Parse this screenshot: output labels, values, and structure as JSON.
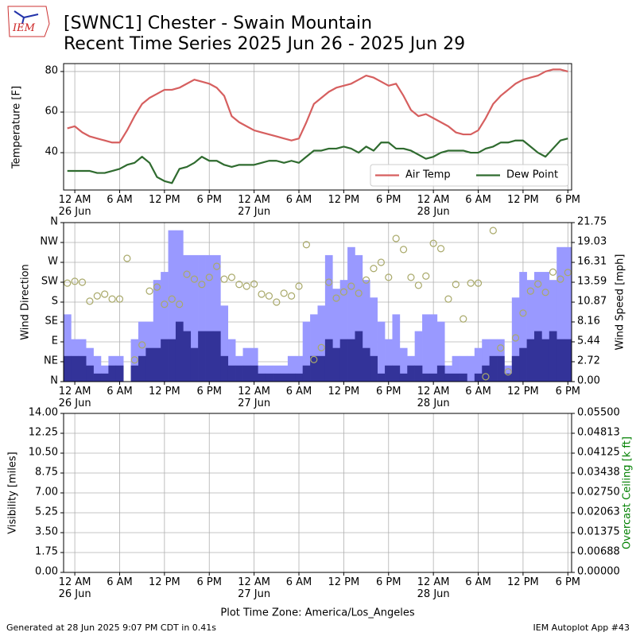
{
  "logo": "IEM",
  "footer": {
    "left": "Generated at 28 Jun 2025 9:07 PM CDT in 0.41s",
    "right": "IEM Autoplot App #43"
  },
  "chart_data": [
    {
      "type": "line",
      "title": "[SWNC1] Chester - Swain Mountain",
      "subtitle": "Recent Time Series 2025 Jun 26 - 2025 Jun 29",
      "ylabel": "Temperature [F]",
      "x": [
        "2025-06-25 23:00",
        "2025-06-26 00:00",
        "2025-06-26 01:00",
        "2025-06-26 02:00",
        "2025-06-26 03:00",
        "2025-06-26 04:00",
        "2025-06-26 05:00",
        "2025-06-26 06:00",
        "2025-06-26 07:00",
        "2025-06-26 08:00",
        "2025-06-26 09:00",
        "2025-06-26 10:00",
        "2025-06-26 11:00",
        "2025-06-26 12:00",
        "2025-06-26 13:00",
        "2025-06-26 14:00",
        "2025-06-26 15:00",
        "2025-06-26 16:00",
        "2025-06-26 17:00",
        "2025-06-26 18:00",
        "2025-06-26 19:00",
        "2025-06-26 20:00",
        "2025-06-26 21:00",
        "2025-06-26 22:00",
        "2025-06-26 23:00",
        "2025-06-27 00:00",
        "2025-06-27 01:00",
        "2025-06-27 02:00",
        "2025-06-27 03:00",
        "2025-06-27 04:00",
        "2025-06-27 05:00",
        "2025-06-27 06:00",
        "2025-06-27 07:00",
        "2025-06-27 08:00",
        "2025-06-27 09:00",
        "2025-06-27 10:00",
        "2025-06-27 11:00",
        "2025-06-27 12:00",
        "2025-06-27 13:00",
        "2025-06-27 14:00",
        "2025-06-27 15:00",
        "2025-06-27 16:00",
        "2025-06-27 17:00",
        "2025-06-27 18:00",
        "2025-06-27 19:00",
        "2025-06-27 20:00",
        "2025-06-27 21:00",
        "2025-06-27 22:00",
        "2025-06-27 23:00",
        "2025-06-28 00:00",
        "2025-06-28 01:00",
        "2025-06-28 02:00",
        "2025-06-28 03:00",
        "2025-06-28 04:00",
        "2025-06-28 05:00",
        "2025-06-28 06:00",
        "2025-06-28 07:00",
        "2025-06-28 08:00",
        "2025-06-28 09:00",
        "2025-06-28 10:00",
        "2025-06-28 11:00",
        "2025-06-28 12:00",
        "2025-06-28 13:00",
        "2025-06-28 14:00",
        "2025-06-28 15:00",
        "2025-06-28 16:00",
        "2025-06-28 17:00",
        "2025-06-28 18:00"
      ],
      "series": [
        {
          "name": "Air Temp",
          "color": "#d65f5f",
          "values": [
            52,
            53,
            50,
            48,
            47,
            46,
            45,
            45,
            51,
            58,
            64,
            67,
            69,
            71,
            71,
            72,
            74,
            76,
            75,
            74,
            72,
            68,
            58,
            55,
            53,
            51,
            50,
            49,
            48,
            47,
            46,
            47,
            55,
            64,
            67,
            70,
            72,
            73,
            74,
            76,
            78,
            77,
            75,
            73,
            74,
            68,
            61,
            58,
            59,
            57,
            55,
            53,
            50,
            49,
            49,
            51,
            57,
            64,
            68,
            71,
            74,
            76,
            77,
            78,
            80,
            81,
            81,
            80
          ]
        },
        {
          "name": "Dew Point",
          "color": "#2f6b2f",
          "values": [
            31,
            31,
            31,
            31,
            30,
            30,
            31,
            32,
            34,
            35,
            38,
            35,
            28,
            26,
            25,
            32,
            33,
            35,
            38,
            36,
            36,
            34,
            33,
            34,
            34,
            34,
            35,
            36,
            36,
            35,
            36,
            35,
            38,
            41,
            41,
            42,
            42,
            43,
            42,
            40,
            43,
            41,
            45,
            45,
            42,
            42,
            41,
            39,
            37,
            38,
            40,
            41,
            41,
            41,
            40,
            40,
            42,
            43,
            45,
            45,
            46,
            46,
            43,
            40,
            38,
            42,
            46,
            47
          ]
        }
      ],
      "xlim": [
        "2025-06-25 22:30",
        "2025-06-28 18:30"
      ],
      "xticks": [
        {
          "value": "2025-06-26 00:00",
          "label": "12 AM\n26 Jun"
        },
        {
          "value": "2025-06-26 06:00",
          "label": "6 AM"
        },
        {
          "value": "2025-06-26 12:00",
          "label": "12 PM"
        },
        {
          "value": "2025-06-26 18:00",
          "label": "6 PM"
        },
        {
          "value": "2025-06-27 00:00",
          "label": "12 AM\n27 Jun"
        },
        {
          "value": "2025-06-27 06:00",
          "label": "6 AM"
        },
        {
          "value": "2025-06-27 12:00",
          "label": "12 PM"
        },
        {
          "value": "2025-06-27 18:00",
          "label": "6 PM"
        },
        {
          "value": "2025-06-28 00:00",
          "label": "12 AM\n28 Jun"
        },
        {
          "value": "2025-06-28 06:00",
          "label": "6 AM"
        },
        {
          "value": "2025-06-28 12:00",
          "label": "12 PM"
        },
        {
          "value": "2025-06-28 18:00",
          "label": "6 PM"
        }
      ],
      "ylim": [
        21.6,
        83.9
      ],
      "yticks": [
        40,
        60,
        80
      ],
      "grid": true,
      "legend": "lower right"
    },
    {
      "type": "bar",
      "ylabel": "Wind Direction",
      "y2label": "Wind Speed [mph]",
      "x": [
        "2025-06-25 23:00",
        "2025-06-26 00:00",
        "2025-06-26 01:00",
        "2025-06-26 02:00",
        "2025-06-26 03:00",
        "2025-06-26 04:00",
        "2025-06-26 05:00",
        "2025-06-26 06:00",
        "2025-06-26 07:00",
        "2025-06-26 08:00",
        "2025-06-26 09:00",
        "2025-06-26 10:00",
        "2025-06-26 11:00",
        "2025-06-26 12:00",
        "2025-06-26 13:00",
        "2025-06-26 14:00",
        "2025-06-26 15:00",
        "2025-06-26 16:00",
        "2025-06-26 17:00",
        "2025-06-26 18:00",
        "2025-06-26 19:00",
        "2025-06-26 20:00",
        "2025-06-26 21:00",
        "2025-06-26 22:00",
        "2025-06-26 23:00",
        "2025-06-27 00:00",
        "2025-06-27 01:00",
        "2025-06-27 02:00",
        "2025-06-27 03:00",
        "2025-06-27 04:00",
        "2025-06-27 05:00",
        "2025-06-27 06:00",
        "2025-06-27 07:00",
        "2025-06-27 08:00",
        "2025-06-27 09:00",
        "2025-06-27 10:00",
        "2025-06-27 11:00",
        "2025-06-27 12:00",
        "2025-06-27 13:00",
        "2025-06-27 14:00",
        "2025-06-27 15:00",
        "2025-06-27 16:00",
        "2025-06-27 17:00",
        "2025-06-27 18:00",
        "2025-06-27 19:00",
        "2025-06-27 20:00",
        "2025-06-27 21:00",
        "2025-06-27 22:00",
        "2025-06-27 23:00",
        "2025-06-28 00:00",
        "2025-06-28 01:00",
        "2025-06-28 02:00",
        "2025-06-28 03:00",
        "2025-06-28 04:00",
        "2025-06-28 05:00",
        "2025-06-28 06:00",
        "2025-06-28 07:00",
        "2025-06-28 08:00",
        "2025-06-28 09:00",
        "2025-06-28 10:00",
        "2025-06-28 11:00",
        "2025-06-28 12:00",
        "2025-06-28 13:00",
        "2025-06-28 14:00",
        "2025-06-28 15:00",
        "2025-06-28 16:00",
        "2025-06-28 17:00",
        "2025-06-28 18:00"
      ],
      "series": [
        {
          "color": "#9999ff",
          "axis": "y2",
          "values": [
            9.2,
            5.8,
            5.8,
            4.6,
            3.5,
            2.2,
            3.5,
            3.5,
            0,
            5.8,
            8.2,
            8.2,
            13.9,
            15.0,
            20.7,
            20.7,
            17.3,
            17.3,
            17.3,
            17.3,
            17.3,
            10.4,
            5.8,
            3.5,
            4.6,
            4.6,
            2.2,
            2.2,
            2.2,
            2.2,
            3.5,
            3.5,
            8.2,
            9.2,
            10.4,
            17.3,
            12.7,
            13.9,
            18.4,
            17.3,
            13.9,
            11.5,
            8.2,
            5.8,
            9.2,
            4.6,
            3.5,
            6.9,
            9.2,
            9.2,
            8.2,
            2.2,
            3.5,
            3.5,
            3.5,
            4.6,
            5.8,
            5.8,
            5.8,
            2.2,
            11.5,
            15.0,
            13.9,
            15.0,
            15.0,
            13.9,
            18.4,
            18.4
          ]
        },
        {
          "color": "#333399",
          "axis": "y2",
          "values": [
            3.5,
            3.5,
            3.5,
            2.2,
            1.1,
            1.1,
            2.2,
            2.2,
            0,
            2.2,
            3.5,
            4.6,
            4.6,
            5.8,
            5.8,
            8.2,
            6.9,
            4.6,
            6.9,
            6.9,
            6.9,
            3.5,
            2.2,
            2.2,
            2.2,
            2.2,
            1.1,
            1.1,
            1.1,
            1.1,
            1.1,
            1.1,
            2.2,
            3.5,
            3.5,
            5.8,
            4.6,
            5.8,
            5.8,
            6.9,
            4.6,
            3.5,
            1.1,
            2.2,
            2.2,
            1.1,
            2.2,
            2.2,
            1.1,
            1.1,
            2.2,
            1.1,
            1.1,
            1.1,
            0,
            1.1,
            2.2,
            3.5,
            3.5,
            1.1,
            3.5,
            4.6,
            5.8,
            6.9,
            5.8,
            6.9,
            5.8,
            5.8
          ]
        },
        {
          "type": "scatter",
          "color": "#a9a96a",
          "values": [
            223,
            227,
            225,
            182,
            194,
            198,
            187,
            187,
            279,
            49,
            83,
            205,
            214,
            175,
            187,
            175,
            243,
            232,
            220,
            236,
            261,
            232,
            236,
            220,
            216,
            221,
            198,
            194,
            180,
            200,
            194,
            216,
            310,
            50,
            77,
            225,
            189,
            203,
            216,
            200,
            230,
            256,
            270,
            236,
            324,
            299,
            236,
            218,
            239,
            313,
            301,
            187,
            220,
            142,
            223,
            223,
            11,
            342,
            76,
            22,
            99,
            155,
            205,
            221,
            202,
            248,
            232,
            247
          ]
        }
      ],
      "xlim": [
        "2025-06-25 22:30",
        "2025-06-28 18:30"
      ],
      "xticks": [
        {
          "value": "2025-06-26 00:00",
          "label": "12 AM\n26 Jun"
        },
        {
          "value": "2025-06-26 06:00",
          "label": "6 AM"
        },
        {
          "value": "2025-06-26 12:00",
          "label": "12 PM"
        },
        {
          "value": "2025-06-26 18:00",
          "label": "6 PM"
        },
        {
          "value": "2025-06-27 00:00",
          "label": "12 AM\n27 Jun"
        },
        {
          "value": "2025-06-27 06:00",
          "label": "6 AM"
        },
        {
          "value": "2025-06-27 12:00",
          "label": "12 PM"
        },
        {
          "value": "2025-06-27 18:00",
          "label": "6 PM"
        },
        {
          "value": "2025-06-28 00:00",
          "label": "12 AM\n28 Jun"
        },
        {
          "value": "2025-06-28 06:00",
          "label": "6 AM"
        },
        {
          "value": "2025-06-28 12:00",
          "label": "12 PM"
        },
        {
          "value": "2025-06-28 18:00",
          "label": "6 PM"
        }
      ],
      "ylim": [
        0,
        360
      ],
      "yticks": [
        {
          "value": 0,
          "label": "N"
        },
        {
          "value": 45,
          "label": "NE"
        },
        {
          "value": 90,
          "label": "E"
        },
        {
          "value": 135,
          "label": "SE"
        },
        {
          "value": 180,
          "label": "S"
        },
        {
          "value": 225,
          "label": "SW"
        },
        {
          "value": 270,
          "label": "W"
        },
        {
          "value": 315,
          "label": "NW"
        },
        {
          "value": 360,
          "label": "N"
        }
      ],
      "y2lim": [
        0,
        21.75
      ],
      "y2ticks": [
        {
          "value": 0,
          "label": "0.00"
        },
        2.72,
        5.44,
        8.16,
        10.87,
        13.59,
        16.31,
        19.03,
        21.75
      ],
      "grid": true
    },
    {
      "type": "line",
      "ylabel": "Visibility [miles]",
      "y2label": "Overcast Ceiling [k ft]",
      "y2label_color": "#008000",
      "xlabel": "Plot Time Zone: America/Los_Angeles",
      "xlim": [
        "2025-06-25 22:30",
        "2025-06-28 18:30"
      ],
      "xticks": [
        {
          "value": "2025-06-26 00:00",
          "label": "12 AM\n26 Jun"
        },
        {
          "value": "2025-06-26 06:00",
          "label": "6 AM"
        },
        {
          "value": "2025-06-26 12:00",
          "label": "12 PM"
        },
        {
          "value": "2025-06-26 18:00",
          "label": "6 PM"
        },
        {
          "value": "2025-06-27 00:00",
          "label": "12 AM\n27 Jun"
        },
        {
          "value": "2025-06-27 06:00",
          "label": "6 AM"
        },
        {
          "value": "2025-06-27 12:00",
          "label": "12 PM"
        },
        {
          "value": "2025-06-27 18:00",
          "label": "6 PM"
        },
        {
          "value": "2025-06-28 00:00",
          "label": "12 AM\n28 Jun"
        },
        {
          "value": "2025-06-28 06:00",
          "label": "6 AM"
        },
        {
          "value": "2025-06-28 12:00",
          "label": "12 PM"
        },
        {
          "value": "2025-06-28 18:00",
          "label": "6 PM"
        }
      ],
      "ylim": [
        0,
        14
      ],
      "yticks": [
        {
          "value": 0,
          "label": "0.00"
        },
        1.75,
        {
          "value": 3.5,
          "label": "3.50"
        },
        5.25,
        {
          "value": 7,
          "label": "7.00"
        },
        8.75,
        {
          "value": 10.5,
          "label": "10.50"
        },
        12.25,
        {
          "value": 14,
          "label": "14.00"
        }
      ],
      "y2lim": [
        0,
        0.055
      ],
      "y2ticks": [
        {
          "value": 0,
          "label": "0.00000"
        },
        0.00688,
        0.01375,
        0.02063,
        {
          "value": 0.0275,
          "label": "0.02750"
        },
        0.03438,
        0.04125,
        0.04813,
        {
          "value": 0.055,
          "label": "0.05500"
        }
      ],
      "grid": true
    }
  ]
}
